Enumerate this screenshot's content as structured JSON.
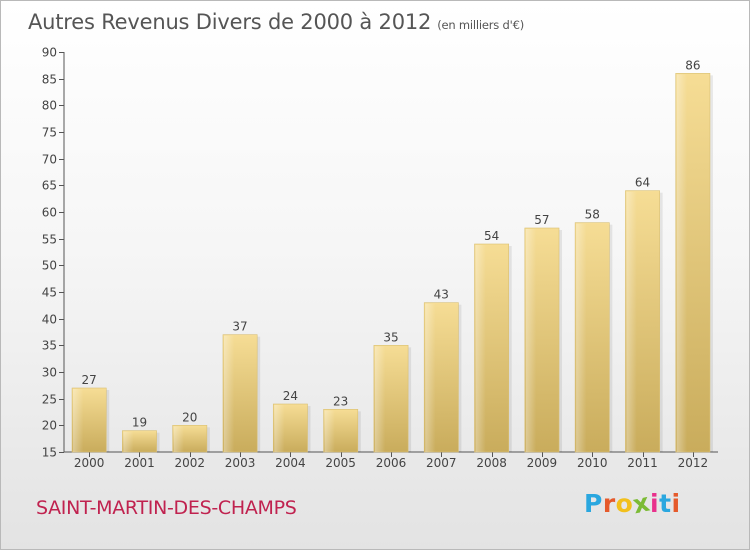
{
  "header": {
    "title": "Autres Revenus Divers de 2000 à 2012",
    "subtitle": "(en milliers d'€)"
  },
  "footer": {
    "place": "SAINT-MARTIN-DES-CHAMPS",
    "logo_letters": [
      "P",
      "r",
      "o",
      "x",
      "i",
      "t",
      "i"
    ],
    "logo_colors": [
      "#2aa7df",
      "#e55a2b",
      "#f2c01c",
      "#7cbb35",
      "#e8318c",
      "#2aa7df",
      "#e55a2b"
    ]
  },
  "chart_data": {
    "type": "bar",
    "categories": [
      "2000",
      "2001",
      "2002",
      "2003",
      "2004",
      "2005",
      "2006",
      "2007",
      "2008",
      "2009",
      "2010",
      "2011",
      "2012"
    ],
    "values": [
      27,
      19,
      20,
      37,
      24,
      23,
      35,
      43,
      54,
      57,
      58,
      64,
      86
    ],
    "title": "Autres Revenus Divers de 2000 à 2012",
    "subtitle": "(en milliers d'€)",
    "ylim": [
      15,
      90
    ],
    "yticks": [
      15,
      20,
      25,
      30,
      35,
      40,
      45,
      50,
      55,
      60,
      65,
      70,
      75,
      80,
      85,
      90
    ],
    "grid": false,
    "bar_color": "#e8cc7e"
  }
}
